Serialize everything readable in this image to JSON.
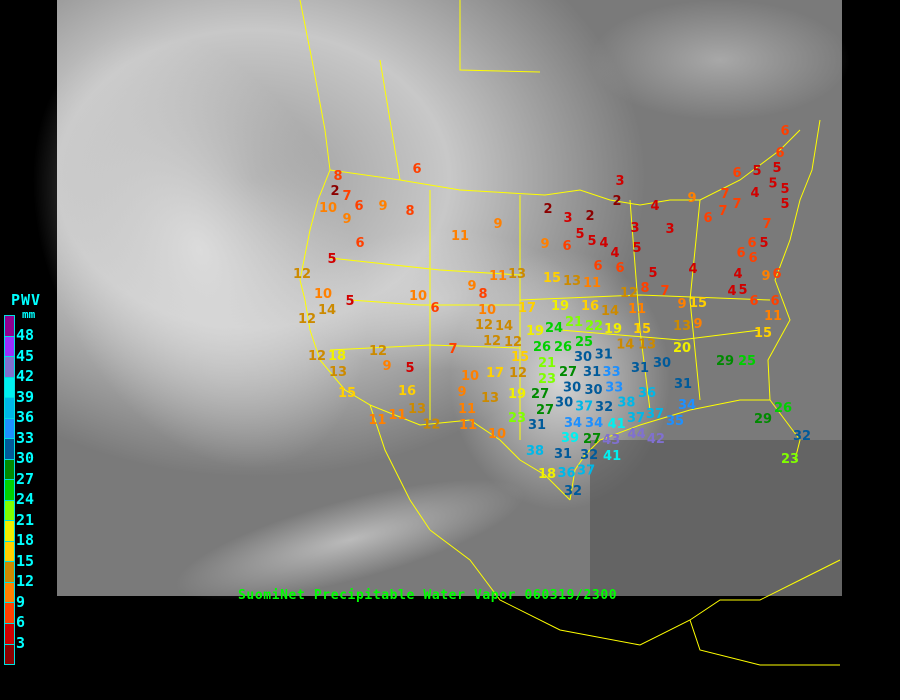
{
  "legend": {
    "title": "PWV",
    "unit": "mm",
    "ticks": [
      "48",
      "45",
      "42",
      "39",
      "36",
      "33",
      "30",
      "27",
      "24",
      "21",
      "18",
      "15",
      "12",
      "9",
      "6",
      "3"
    ],
    "colors_top_to_bottom": [
      "#8f008f",
      "#9a30ff",
      "#8070d0",
      "#00f0f0",
      "#00b8e8",
      "#1e90ff",
      "#005a9a",
      "#008a00",
      "#00d000",
      "#80ff00",
      "#f0f000",
      "#ffd000",
      "#cc8a00",
      "#ff8000",
      "#ff4000",
      "#d00000",
      "#8b0000"
    ]
  },
  "caption": "SuomiNet Precipitable Water Vapor 060319/2300",
  "map": {
    "background": "grayscale satellite cloud image",
    "boundary_color": "#ffff00",
    "station_values": [
      6,
      8,
      2,
      7,
      10,
      6,
      9,
      8,
      9,
      6,
      11,
      9,
      5,
      12,
      5,
      10,
      14,
      12,
      10,
      6,
      9,
      8,
      10,
      12,
      14,
      12,
      11,
      13,
      12,
      7,
      12,
      9,
      5,
      12,
      18,
      13,
      15,
      16,
      13,
      11,
      11,
      12,
      10,
      9,
      13,
      11,
      11,
      10,
      17,
      12,
      17,
      15,
      19,
      23,
      19,
      16,
      14,
      11,
      9,
      21,
      24,
      22,
      19,
      19,
      15,
      13,
      20,
      26,
      25,
      30,
      31,
      21,
      26,
      27,
      23,
      30,
      30,
      31,
      33,
      33,
      31,
      30,
      31,
      27,
      30,
      27,
      37,
      32,
      34,
      34,
      38,
      37,
      36,
      37,
      35,
      34,
      31,
      27,
      39,
      32,
      43,
      41,
      44,
      42,
      41,
      31,
      38,
      37,
      36,
      18,
      32,
      6,
      6,
      5,
      6,
      5,
      5,
      3,
      9,
      7,
      7,
      7,
      6,
      4,
      5,
      5,
      2,
      3,
      2,
      2,
      4,
      3,
      3,
      5,
      5,
      4,
      9,
      6,
      5,
      4,
      6,
      6,
      7,
      6,
      5,
      6,
      6,
      4,
      5,
      7,
      8,
      12,
      4,
      5,
      4,
      6,
      9,
      6,
      6,
      11,
      15,
      9,
      13,
      15,
      15,
      13,
      11,
      14,
      29,
      25,
      26,
      29,
      32,
      23
    ]
  }
}
